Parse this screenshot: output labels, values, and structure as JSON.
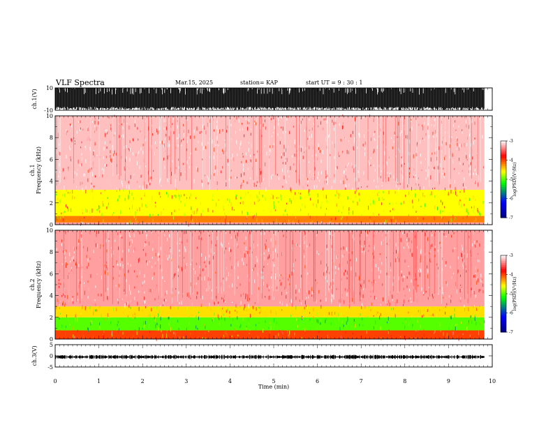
{
  "header": {
    "title": "VLF Spectra",
    "date": "Mar.15, 2025",
    "station": "station= KAP",
    "start": "start  UT =   9 : 30 : 1"
  },
  "colors": {
    "background": "#ffffff",
    "axis": "#000000",
    "colormap": [
      "#00007f",
      "#0000ff",
      "#00ff00",
      "#ffff00",
      "#ff0000",
      "#ffffff"
    ]
  },
  "chart_data": [
    {
      "type": "line",
      "panel": "ch1-waveform",
      "ylabel": "ch.1(V)",
      "ylim": [
        -10,
        10
      ],
      "yticks": [
        "10",
        "-10"
      ],
      "xlim": [
        0,
        10
      ],
      "description": "dense noise waveform, saturating between -10 and 10 V"
    },
    {
      "type": "heatmap",
      "panel": "ch1-spectrogram",
      "ylabel": "ch.1",
      "ylabel2": "Frequency  (kHz)",
      "ylim": [
        0,
        10
      ],
      "yticks": [
        "0",
        "2",
        "4",
        "6",
        "8",
        "10"
      ],
      "xlim": [
        0,
        10
      ],
      "data_end_min": 9.82,
      "bands_khz": [
        {
          "range": [
            0,
            0.2
          ],
          "log_psd": -3.3
        },
        {
          "range": [
            0.2,
            0.8
          ],
          "log_psd": -4.2
        },
        {
          "range": [
            0.8,
            3.2
          ],
          "log_psd": -4.6
        },
        {
          "range": [
            3.2,
            10
          ],
          "log_psd": -3.2
        }
      ],
      "colorbar": {
        "label": "log(PSD)(V²/Hz)",
        "ticks": [
          "-3",
          "-4",
          "-5",
          "-6",
          "-7"
        ],
        "range": [
          -7,
          -3
        ]
      }
    },
    {
      "type": "heatmap",
      "panel": "ch2-spectrogram",
      "ylabel": "ch.2",
      "ylabel2": "Frequency  (kHz)",
      "ylim": [
        0,
        10
      ],
      "yticks": [
        "0",
        "2",
        "4",
        "6",
        "8",
        "10"
      ],
      "xlim": [
        0,
        10
      ],
      "data_end_min": 9.82,
      "bands_khz": [
        {
          "range": [
            0,
            0.8
          ],
          "log_psd": -4.0
        },
        {
          "range": [
            0.8,
            2.0
          ],
          "log_psd": -5.0
        },
        {
          "range": [
            2.0,
            3.0
          ],
          "log_psd": -4.5
        },
        {
          "range": [
            3.0,
            10
          ],
          "log_psd": -3.3
        }
      ],
      "colorbar": {
        "label": "log(PSD)(V²/Hz)",
        "ticks": [
          "-3",
          "-4",
          "-5",
          "-6",
          "-7"
        ],
        "range": [
          -7,
          -3
        ]
      }
    },
    {
      "type": "line",
      "panel": "ch3-waveform",
      "ylabel": "ch.3(V)",
      "ylim": [
        -5,
        5
      ],
      "yticks": [
        "5",
        "0",
        "-5"
      ],
      "xlim": [
        0,
        10
      ],
      "xlabel": "Time  (min)",
      "xticks": [
        "0",
        "1",
        "2",
        "3",
        "4",
        "5",
        "6",
        "7",
        "8",
        "9",
        "10"
      ],
      "level_v": -0.5,
      "description": "flat band near -0.5 V with small noise"
    }
  ]
}
